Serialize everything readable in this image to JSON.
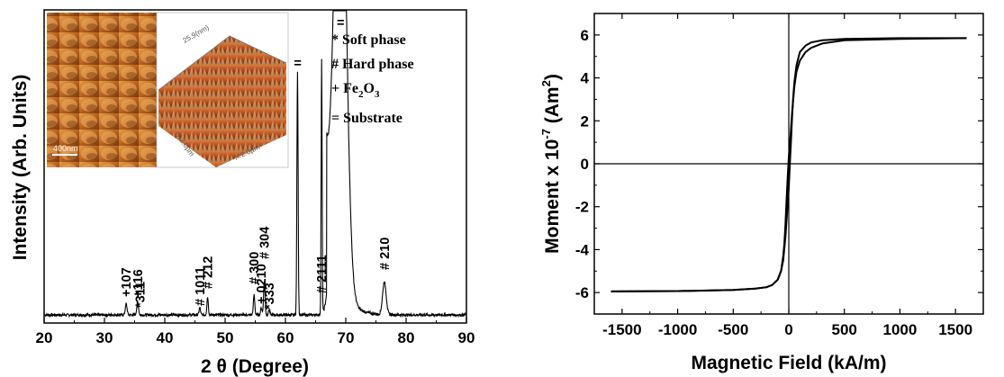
{
  "chart_data": [
    {
      "type": "line",
      "xlabel": "2 θ (Degree)",
      "ylabel": "Intensity (Arb. Units)",
      "xlim": [
        20,
        90
      ],
      "xticks": [
        20,
        30,
        40,
        50,
        60,
        70,
        80,
        90
      ],
      "yticks_labeled": false,
      "grid": false,
      "peaks": [
        {
          "label": "+107",
          "x": 33.6
        },
        {
          "label": "+116",
          "x": 35.5
        },
        {
          "label": "*311",
          "x": 35.9
        },
        {
          "label": "# 1011",
          "x": 45.8
        },
        {
          "label": "# 212",
          "x": 47.1
        },
        {
          "label": "# 300",
          "x": 54.8
        },
        {
          "label": "+ 0210",
          "x": 56.0
        },
        {
          "label": "# 304",
          "x": 56.5
        },
        {
          "label": "*333",
          "x": 57.3
        },
        {
          "label": "=",
          "x": 62.0
        },
        {
          "label": "# 2111",
          "x": 66.0
        },
        {
          "label": "=",
          "x": 69.1
        },
        {
          "label": "# 210",
          "x": 76.4
        }
      ],
      "legend": {
        "placement": "top-right",
        "entries": [
          {
            "symbol": "*",
            "text": "Soft phase"
          },
          {
            "symbol": "#",
            "text": "Hard phase"
          },
          {
            "symbol": "+",
            "text": "Fe",
            "sub": "2",
            "text2": "O",
            "sub2": "3"
          },
          {
            "symbol": "=",
            "text": "Substrate"
          }
        ]
      },
      "inset_images": [
        {
          "description": "AFM 2D topography",
          "scale_bar": "400nm"
        },
        {
          "description": "AFM 3D topography"
        }
      ]
    },
    {
      "type": "line",
      "xlabel": "Magnetic Field (kA/m)",
      "ylabel": "Moment x 10",
      "ylabel_sup": "-7",
      "ylabel_unit": "(Am",
      "ylabel_unit_sup": "2",
      "ylabel_close": ")",
      "xlim": [
        -1750,
        1750
      ],
      "ylim": [
        -7,
        7
      ],
      "xticks": [
        -1500,
        -1000,
        -500,
        0,
        500,
        1000,
        1500
      ],
      "yticks": [
        -6,
        -4,
        -2,
        0,
        2,
        4,
        6
      ],
      "grid": false,
      "zero_lines": true,
      "series": [
        {
          "values_desc": "branch_decreasing_field",
          "x": [
            1600,
            1000,
            500,
            300,
            200,
            150,
            100,
            70,
            50,
            30,
            15,
            0,
            -10,
            -20,
            -30,
            -40,
            -50,
            -70,
            -100,
            -150,
            -200,
            -300,
            -500,
            -1000,
            -1600
          ],
          "y": [
            5.85,
            5.82,
            5.75,
            5.6,
            5.4,
            5.2,
            4.8,
            4.3,
            3.6,
            2.4,
            1.3,
            0.3,
            -0.6,
            -1.7,
            -2.8,
            -3.7,
            -4.3,
            -5.0,
            -5.4,
            -5.65,
            -5.75,
            -5.82,
            -5.88,
            -5.93,
            -5.95
          ]
        },
        {
          "values_desc": "branch_increasing_field",
          "x": [
            -1600,
            -1000,
            -500,
            -300,
            -200,
            -150,
            -100,
            -70,
            -50,
            -30,
            -15,
            0,
            10,
            20,
            30,
            40,
            50,
            70,
            100,
            150,
            200,
            300,
            500,
            1000,
            1600
          ],
          "y": [
            -5.95,
            -5.93,
            -5.88,
            -5.82,
            -5.75,
            -5.65,
            -5.4,
            -5.0,
            -4.5,
            -3.4,
            -2.3,
            -1.1,
            0.0,
            1.1,
            2.2,
            3.1,
            3.8,
            4.6,
            5.2,
            5.5,
            5.65,
            5.75,
            5.82,
            5.85,
            5.85
          ]
        }
      ]
    }
  ]
}
